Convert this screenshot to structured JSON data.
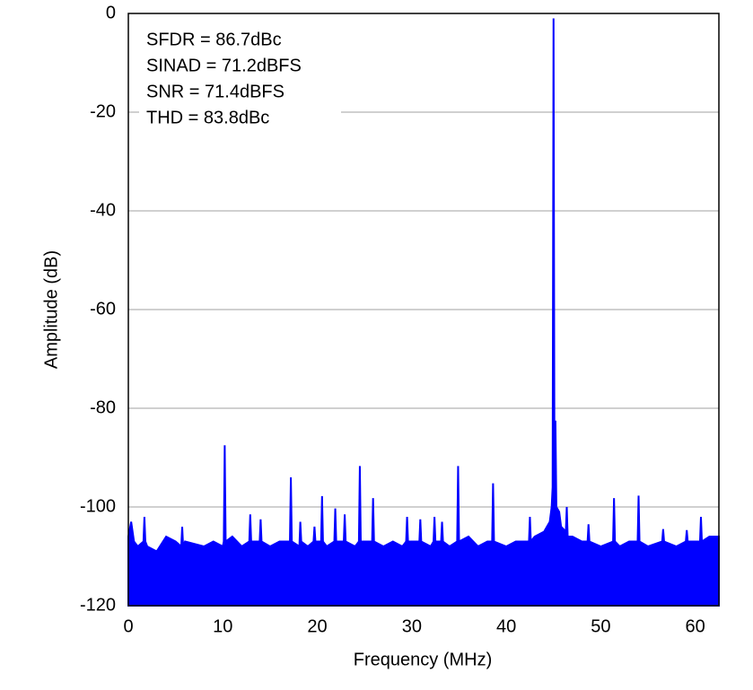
{
  "chart_data": {
    "type": "area",
    "xlabel": "Frequency (MHz)",
    "ylabel": "Amplitude (dB)",
    "annotations": [
      "SFDR = 86.7dBc",
      "SINAD = 71.2dBFS",
      "SNR = 71.4dBFS",
      "THD = 83.8dBc"
    ],
    "xlim": [
      0,
      62.5
    ],
    "ylim": [
      -120,
      0
    ],
    "xticks": [
      0,
      10,
      20,
      30,
      40,
      50,
      60
    ],
    "yticks": [
      0,
      -20,
      -40,
      -60,
      -80,
      -100,
      -120
    ],
    "grid": true,
    "series": [
      {
        "color": "#0000ff",
        "x": [
          0,
          0.3,
          0.6,
          1,
          1.6,
          1.7,
          1.8,
          2,
          3,
          4,
          5,
          5.6,
          5.7,
          5.8,
          6,
          7,
          8,
          9,
          10,
          10.1,
          10.2,
          10.3,
          11,
          12,
          12.8,
          12.9,
          13,
          13.9,
          14,
          14.1,
          15,
          16,
          17.1,
          17.2,
          17.3,
          18.1,
          18.2,
          18.3,
          19,
          19.6,
          19.7,
          19.8,
          20.4,
          20.5,
          20.6,
          21,
          21.8,
          21.9,
          22,
          22.8,
          22.9,
          23,
          24,
          24.4,
          24.5,
          24.6,
          25.8,
          25.9,
          26,
          27,
          28,
          29,
          29.4,
          29.5,
          29.6,
          30.8,
          30.9,
          31,
          32,
          32.3,
          32.4,
          32.5,
          33.1,
          33.2,
          33.3,
          34,
          34.8,
          34.9,
          35,
          36,
          37,
          38,
          38.5,
          38.6,
          38.7,
          40,
          41,
          42,
          42.4,
          42.5,
          42.6,
          43,
          44,
          44.6,
          44.8,
          44.9,
          45,
          45.1,
          45.2,
          45.3,
          45.6,
          45.8,
          46.3,
          46.4,
          46.5,
          47,
          48,
          48.6,
          48.7,
          48.8,
          50,
          51.3,
          51.4,
          51.5,
          52,
          53,
          53.9,
          54,
          54.1,
          55,
          56.5,
          56.6,
          56.7,
          58,
          59,
          59.1,
          59.2,
          60.5,
          60.6,
          60.7,
          61.5,
          62.5
        ],
        "values": [
          -106,
          -103,
          -107,
          -108,
          -107,
          -102,
          -107,
          -108,
          -109,
          -106,
          -107,
          -108,
          -104,
          -108,
          -107,
          -107.5,
          -108,
          -107,
          -108,
          -107,
          -87.5,
          -107,
          -106,
          -108,
          -107,
          -101.5,
          -107,
          -107,
          -102.5,
          -107,
          -108,
          -107,
          -107,
          -94,
          -107,
          -108,
          -103,
          -107,
          -108,
          -107,
          -104,
          -107,
          -107,
          -97.8,
          -107,
          -108,
          -107,
          -100.3,
          -107,
          -107,
          -101.5,
          -107,
          -108,
          -107,
          -91.7,
          -107,
          -107,
          -98.2,
          -107,
          -108,
          -107,
          -108,
          -107,
          -102,
          -107,
          -107,
          -102.5,
          -107,
          -108,
          -107,
          -102,
          -107,
          -107,
          -103,
          -107,
          -108,
          -107,
          -91.7,
          -107,
          -106,
          -108,
          -107,
          -107,
          -95.2,
          -107,
          -108,
          -107,
          -107,
          -107,
          -102,
          -107,
          -106,
          -105,
          -103,
          -100,
          -96,
          -1,
          -96,
          -82.5,
          -100,
          -101,
          -104,
          -105,
          -100,
          -106,
          -106,
          -107,
          -107,
          -103.5,
          -107,
          -108,
          -107,
          -98.2,
          -107,
          -108,
          -107,
          -107,
          -97.7,
          -107,
          -108,
          -107,
          -104.5,
          -107,
          -108,
          -107,
          -104.7,
          -107,
          -107,
          -102,
          -107,
          -106,
          -106
        ]
      }
    ]
  }
}
